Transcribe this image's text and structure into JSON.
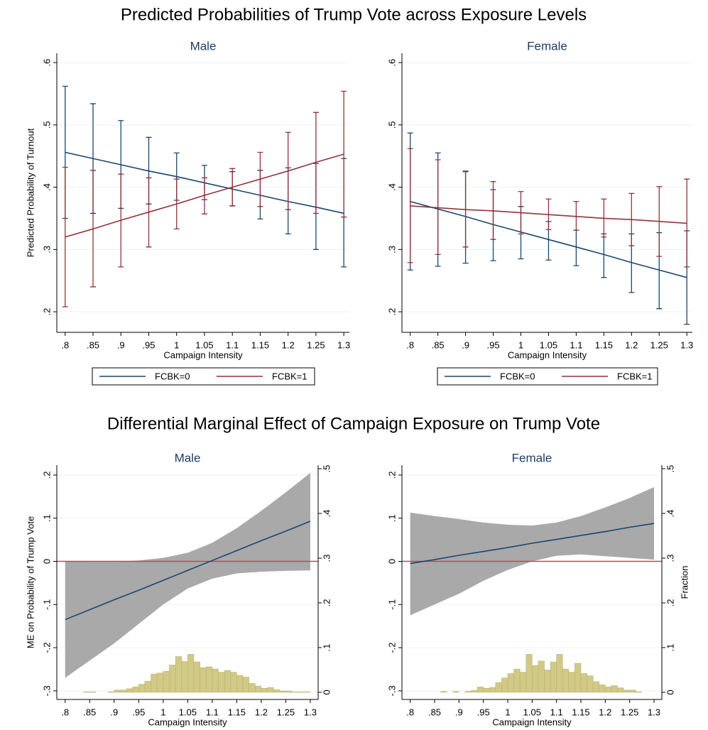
{
  "headings": [
    "Predicted Probabilities of Trump Vote across Exposure Levels",
    "Differential Marginal Effect of Campaign Exposure on Trump Vote"
  ],
  "chart_data": [
    {
      "type": "line",
      "title": "Male",
      "xlabel": "Campaign Intensity",
      "ylabel": "Predicted Probability of Turnout",
      "x": [
        0.8,
        0.85,
        0.9,
        0.95,
        1,
        1.05,
        1.1,
        1.15,
        1.2,
        1.25,
        1.3
      ],
      "xlim": [
        0.785,
        1.31
      ],
      "xticks": [
        {
          "value": 0.8,
          "label": ".8"
        },
        {
          "value": 0.85,
          "label": ".85"
        },
        {
          "value": 0.9,
          "label": ".9"
        },
        {
          "value": 0.95,
          "label": ".95"
        },
        1,
        1.05,
        1.1,
        1.15,
        1.2,
        1.25,
        1.3
      ],
      "ylim": [
        0.167,
        0.615
      ],
      "yticks": [
        {
          "value": 0.2,
          "label": ".2"
        },
        {
          "value": 0.3,
          "label": ".3"
        },
        {
          "value": 0.4,
          "label": ".4"
        },
        {
          "value": 0.5,
          "label": ".5"
        },
        {
          "value": 0.6,
          "label": ".6"
        }
      ],
      "grid": true,
      "legend": "bottom",
      "series": [
        {
          "name": "FCBK=0",
          "color": "#1a476f",
          "values": [
            0.456,
            0.446,
            0.436,
            0.426,
            0.417,
            0.407,
            0.397,
            0.387,
            0.377,
            0.368,
            0.358
          ],
          "upper": [
            0.562,
            0.534,
            0.507,
            0.48,
            0.455,
            0.435,
            0.425,
            0.427,
            0.431,
            0.438,
            0.446
          ],
          "lower": [
            0.35,
            0.358,
            0.366,
            0.373,
            0.379,
            0.38,
            0.37,
            0.349,
            0.325,
            0.3,
            0.272
          ]
        },
        {
          "name": "FCBK=1",
          "color": "#90353b",
          "values": [
            0.32,
            0.333,
            0.347,
            0.36,
            0.373,
            0.387,
            0.4,
            0.413,
            0.426,
            0.44,
            0.453
          ],
          "upper": [
            0.432,
            0.427,
            0.421,
            0.415,
            0.413,
            0.415,
            0.43,
            0.456,
            0.488,
            0.52,
            0.554
          ],
          "lower": [
            0.208,
            0.24,
            0.272,
            0.304,
            0.333,
            0.357,
            0.37,
            0.369,
            0.364,
            0.358,
            0.352
          ]
        }
      ]
    },
    {
      "type": "line",
      "title": "Female",
      "xlabel": "Campaign Intensity",
      "x": [
        0.8,
        0.85,
        0.9,
        0.95,
        1,
        1.05,
        1.1,
        1.15,
        1.2,
        1.25,
        1.3
      ],
      "xlim": [
        0.785,
        1.31
      ],
      "xticks": [
        {
          "value": 0.8,
          "label": ".8"
        },
        {
          "value": 0.85,
          "label": ".85"
        },
        {
          "value": 0.9,
          "label": ".9"
        },
        {
          "value": 0.95,
          "label": ".95"
        },
        1,
        1.05,
        1.1,
        1.15,
        1.2,
        1.25,
        1.3
      ],
      "ylim": [
        0.167,
        0.615
      ],
      "yticks": [
        {
          "value": 0.2,
          "label": ".2"
        },
        {
          "value": 0.3,
          "label": ".3"
        },
        {
          "value": 0.4,
          "label": ".4"
        },
        {
          "value": 0.5,
          "label": ".5"
        },
        {
          "value": 0.6,
          "label": ".6"
        }
      ],
      "grid": true,
      "legend": "bottom",
      "series": [
        {
          "name": "FCBK=0",
          "color": "#1a476f",
          "values": [
            0.377,
            0.365,
            0.353,
            0.34,
            0.328,
            0.316,
            0.304,
            0.292,
            0.279,
            0.267,
            0.255
          ],
          "upper": [
            0.487,
            0.455,
            0.425,
            0.396,
            0.369,
            0.345,
            0.331,
            0.325,
            0.325,
            0.327,
            0.33
          ],
          "lower": [
            0.267,
            0.273,
            0.278,
            0.282,
            0.285,
            0.283,
            0.274,
            0.255,
            0.231,
            0.205,
            0.18
          ]
        },
        {
          "name": "FCBK=1",
          "color": "#90353b",
          "values": [
            0.37,
            0.367,
            0.364,
            0.362,
            0.359,
            0.356,
            0.353,
            0.35,
            0.348,
            0.345,
            0.342
          ],
          "upper": [
            0.462,
            0.444,
            0.426,
            0.409,
            0.393,
            0.381,
            0.377,
            0.381,
            0.39,
            0.401,
            0.413
          ],
          "lower": [
            0.279,
            0.292,
            0.304,
            0.316,
            0.325,
            0.332,
            0.331,
            0.32,
            0.306,
            0.289,
            0.272
          ]
        }
      ]
    },
    {
      "type": "combo",
      "title": "Male",
      "xlabel": "Campaign Intensity",
      "ylabel": "ME on Probability of Trump Vote",
      "x": [
        0.8,
        0.85,
        0.9,
        0.95,
        1,
        1.05,
        1.1,
        1.15,
        1.2,
        1.25,
        1.3
      ],
      "xlim": [
        0.783,
        1.316
      ],
      "xticks": [
        {
          "value": 0.8,
          "label": ".8"
        },
        {
          "value": 0.85,
          "label": ".85"
        },
        {
          "value": 0.9,
          "label": ".9"
        },
        {
          "value": 0.95,
          "label": ".95"
        },
        1,
        1.05,
        1.1,
        1.15,
        1.2,
        1.25,
        1.3
      ],
      "ylim": [
        -0.32,
        0.223
      ],
      "yticks": [
        {
          "value": -0.3,
          "label": "-.3"
        },
        {
          "value": -0.2,
          "label": "-.2"
        },
        {
          "value": -0.1,
          "label": "-.1"
        },
        0,
        {
          "value": 0.1,
          "label": ".1"
        },
        {
          "value": 0.2,
          "label": ".2"
        }
      ],
      "y2lim": [
        -0.016,
        0.508
      ],
      "y2ticks": [
        0,
        {
          "value": 0.1,
          "label": ".1"
        },
        {
          "value": 0.2,
          "label": ".2"
        },
        {
          "value": 0.3,
          "label": ".3"
        },
        {
          "value": 0.4,
          "label": ".4"
        },
        {
          "value": 0.5,
          "label": ".5"
        }
      ],
      "grid": true,
      "refline": {
        "value": 0,
        "color": "#c8425e"
      },
      "series": [
        {
          "color": "#1a476f",
          "band_color": "#a9a9a9",
          "values": [
            -0.135,
            -0.112,
            -0.089,
            -0.067,
            -0.044,
            -0.021,
            0.002,
            0.025,
            0.048,
            0.07,
            0.093
          ],
          "upper": [
            0,
            -0.001,
            -0.001,
            0.002,
            0.008,
            0.02,
            0.043,
            0.077,
            0.117,
            0.16,
            0.205
          ],
          "lower": [
            -0.27,
            -0.23,
            -0.19,
            -0.145,
            -0.1,
            -0.063,
            -0.04,
            -0.028,
            -0.024,
            -0.022,
            -0.021
          ]
        }
      ],
      "histogram": {
        "axis": "y2",
        "color": "#d1c986",
        "edge": "#b5ad68",
        "bins": [
          0.8,
          0.8125,
          0.825,
          0.8375,
          0.85,
          0.8625,
          0.875,
          0.8875,
          0.9,
          0.9125,
          0.925,
          0.9375,
          0.95,
          0.9625,
          0.975,
          0.9875,
          1,
          1.0125,
          1.025,
          1.0375,
          1.05,
          1.0625,
          1.075,
          1.0875,
          1.1,
          1.1125,
          1.125,
          1.1375,
          1.15,
          1.1625,
          1.175,
          1.1875,
          1.2,
          1.2125,
          1.225,
          1.2375,
          1.25,
          1.2625,
          1.275,
          1.2875,
          1.3
        ],
        "values": [
          0,
          0,
          0,
          0.001,
          0.001,
          0,
          0,
          0.001,
          0.005,
          0.005,
          0.008,
          0.012,
          0.018,
          0.025,
          0.041,
          0.043,
          0.047,
          0.061,
          0.08,
          0.069,
          0.085,
          0.068,
          0.055,
          0.057,
          0.052,
          0.045,
          0.049,
          0.045,
          0.038,
          0.034,
          0.02,
          0.014,
          0.009,
          0.011,
          0.006,
          0.003,
          0.003,
          0.001,
          0.001,
          0.001
        ]
      }
    },
    {
      "type": "combo",
      "title": "Female",
      "xlabel": "Campaign Intensity",
      "y2label": "Fraction",
      "x": [
        0.8,
        0.85,
        0.9,
        0.95,
        1,
        1.05,
        1.1,
        1.15,
        1.2,
        1.25,
        1.3
      ],
      "xlim": [
        0.783,
        1.316
      ],
      "xticks": [
        {
          "value": 0.8,
          "label": ".8"
        },
        {
          "value": 0.85,
          "label": ".85"
        },
        {
          "value": 0.9,
          "label": ".9"
        },
        {
          "value": 0.95,
          "label": ".95"
        },
        1,
        1.05,
        1.1,
        1.15,
        1.2,
        1.25,
        1.3
      ],
      "ylim": [
        -0.32,
        0.223
      ],
      "yticks": [
        {
          "value": -0.3,
          "label": "-.3"
        },
        {
          "value": -0.2,
          "label": "-.2"
        },
        {
          "value": -0.1,
          "label": "-.1"
        },
        0,
        {
          "value": 0.1,
          "label": ".1"
        },
        {
          "value": 0.2,
          "label": ".2"
        }
      ],
      "y2lim": [
        -0.016,
        0.508
      ],
      "y2ticks": [
        0,
        {
          "value": 0.1,
          "label": ".1"
        },
        {
          "value": 0.2,
          "label": ".2"
        },
        {
          "value": 0.3,
          "label": ".3"
        },
        {
          "value": 0.4,
          "label": ".4"
        },
        {
          "value": 0.5,
          "label": ".5"
        }
      ],
      "grid": true,
      "refline": {
        "value": 0,
        "color": "#c8425e"
      },
      "series": [
        {
          "color": "#1a476f",
          "band_color": "#a9a9a9",
          "values": [
            -0.005,
            0.004,
            0.014,
            0.023,
            0.032,
            0.042,
            0.051,
            0.06,
            0.069,
            0.079,
            0.088
          ],
          "upper": [
            0.113,
            0.105,
            0.098,
            0.09,
            0.085,
            0.083,
            0.09,
            0.105,
            0.125,
            0.147,
            0.172
          ],
          "lower": [
            -0.125,
            -0.1,
            -0.075,
            -0.045,
            -0.02,
            0,
            0.013,
            0.016,
            0.012,
            0.008,
            0.004
          ]
        }
      ],
      "histogram": {
        "axis": "y2",
        "color": "#d1c986",
        "edge": "#b5ad68",
        "bins": [
          0.8,
          0.8125,
          0.825,
          0.8375,
          0.85,
          0.8625,
          0.875,
          0.8875,
          0.9,
          0.9125,
          0.925,
          0.9375,
          0.95,
          0.9625,
          0.975,
          0.9875,
          1,
          1.0125,
          1.025,
          1.0375,
          1.05,
          1.0625,
          1.075,
          1.0875,
          1.1,
          1.1125,
          1.125,
          1.1375,
          1.15,
          1.1625,
          1.175,
          1.1875,
          1.2,
          1.2125,
          1.225,
          1.2375,
          1.25,
          1.2625,
          1.275,
          1.2875,
          1.3
        ],
        "values": [
          0,
          0,
          0,
          0,
          0,
          0.002,
          0,
          0.002,
          0,
          0.002,
          0.004,
          0.012,
          0.009,
          0.011,
          0.022,
          0.032,
          0.042,
          0.052,
          0.045,
          0.085,
          0.06,
          0.07,
          0.05,
          0.068,
          0.085,
          0.052,
          0.045,
          0.065,
          0.042,
          0.037,
          0.024,
          0.017,
          0.012,
          0.015,
          0.01,
          0.005,
          0.005,
          0.001,
          0,
          0
        ]
      }
    }
  ]
}
